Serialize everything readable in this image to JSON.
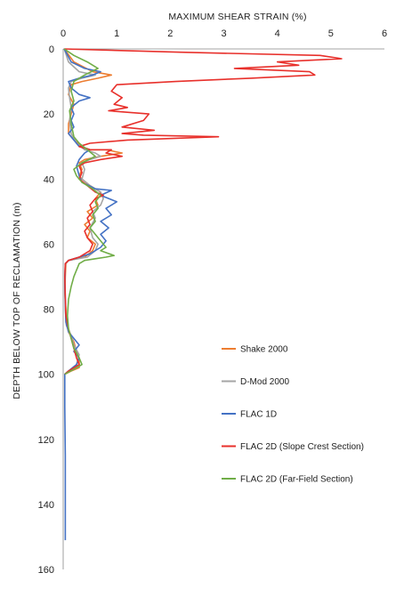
{
  "chart_data": {
    "type": "line",
    "xlabel": "MAXIMUM SHEAR STRAIN (%)",
    "ylabel": "DEPTH BELOW TOP OF RECLAMATION (m)",
    "xlim": [
      0,
      6
    ],
    "ylim": [
      0,
      160
    ],
    "y_inverted": true,
    "x_axis_position": "top",
    "x_ticks": [
      0,
      1,
      2,
      3,
      4,
      5,
      6
    ],
    "y_ticks": [
      0,
      20,
      40,
      60,
      80,
      100,
      120,
      140,
      160
    ],
    "grid": "none",
    "legend_position": "bottom-right inside",
    "series": [
      {
        "name": "Shake 2000",
        "color": "#ed7d31",
        "points": [
          [
            0.02,
            0
          ],
          [
            0.2,
            4
          ],
          [
            0.55,
            7
          ],
          [
            0.9,
            8
          ],
          [
            0.65,
            9
          ],
          [
            0.35,
            10
          ],
          [
            0.15,
            11
          ],
          [
            0.1,
            14
          ],
          [
            0.2,
            17
          ],
          [
            0.15,
            20
          ],
          [
            0.1,
            23
          ],
          [
            0.1,
            26
          ],
          [
            0.2,
            28
          ],
          [
            0.35,
            30
          ],
          [
            0.5,
            31
          ],
          [
            0.8,
            31
          ],
          [
            1.1,
            32
          ],
          [
            0.7,
            33
          ],
          [
            0.4,
            34
          ],
          [
            0.3,
            35
          ],
          [
            0.35,
            37
          ],
          [
            0.3,
            39
          ],
          [
            0.35,
            40
          ],
          [
            0.5,
            42
          ],
          [
            0.7,
            44
          ],
          [
            0.6,
            46
          ],
          [
            0.65,
            48
          ],
          [
            0.45,
            50
          ],
          [
            0.55,
            52
          ],
          [
            0.4,
            54
          ],
          [
            0.5,
            56
          ],
          [
            0.45,
            58
          ],
          [
            0.6,
            60
          ],
          [
            0.55,
            62
          ],
          [
            0.4,
            64
          ],
          [
            0.1,
            65
          ],
          [
            0.05,
            66
          ],
          [
            0.04,
            70
          ],
          [
            0.03,
            75
          ],
          [
            0.05,
            80
          ],
          [
            0.06,
            84
          ],
          [
            0.1,
            87
          ],
          [
            0.2,
            90
          ],
          [
            0.25,
            93
          ],
          [
            0.3,
            96
          ],
          [
            0.3,
            98
          ],
          [
            0.15,
            99
          ],
          [
            0.03,
            100
          ]
        ]
      },
      {
        "name": "D-Mod 2000",
        "color": "#a5a5a5",
        "points": [
          [
            0.02,
            0
          ],
          [
            0.1,
            4
          ],
          [
            0.3,
            7
          ],
          [
            0.6,
            8
          ],
          [
            0.35,
            9
          ],
          [
            0.15,
            10
          ],
          [
            0.1,
            12
          ],
          [
            0.12,
            15
          ],
          [
            0.15,
            18
          ],
          [
            0.12,
            22
          ],
          [
            0.15,
            26
          ],
          [
            0.25,
            29
          ],
          [
            0.4,
            31
          ],
          [
            0.6,
            32
          ],
          [
            0.7,
            33
          ],
          [
            0.5,
            34
          ],
          [
            0.35,
            35
          ],
          [
            0.4,
            37
          ],
          [
            0.35,
            40
          ],
          [
            0.5,
            42
          ],
          [
            0.7,
            44
          ],
          [
            0.75,
            46
          ],
          [
            0.7,
            48
          ],
          [
            0.55,
            50
          ],
          [
            0.6,
            52
          ],
          [
            0.5,
            55
          ],
          [
            0.55,
            58
          ],
          [
            0.65,
            60
          ],
          [
            0.6,
            62
          ],
          [
            0.45,
            64
          ],
          [
            0.1,
            65
          ],
          [
            0.04,
            66
          ],
          [
            0.03,
            72
          ],
          [
            0.04,
            80
          ],
          [
            0.06,
            85
          ],
          [
            0.15,
            88
          ],
          [
            0.2,
            91
          ],
          [
            0.3,
            94
          ],
          [
            0.25,
            97
          ],
          [
            0.1,
            99
          ],
          [
            0.03,
            100
          ]
        ]
      },
      {
        "name": "FLAC 1D",
        "color": "#4472c4",
        "points": [
          [
            0.02,
            0
          ],
          [
            0.15,
            4
          ],
          [
            0.4,
            6
          ],
          [
            0.7,
            7
          ],
          [
            0.55,
            8
          ],
          [
            0.3,
            9
          ],
          [
            0.1,
            10
          ],
          [
            0.15,
            12
          ],
          [
            0.3,
            14
          ],
          [
            0.5,
            15
          ],
          [
            0.3,
            16
          ],
          [
            0.15,
            18
          ],
          [
            0.2,
            20
          ],
          [
            0.15,
            22
          ],
          [
            0.2,
            24
          ],
          [
            0.1,
            26
          ],
          [
            0.2,
            28
          ],
          [
            0.3,
            30
          ],
          [
            0.5,
            31
          ],
          [
            0.4,
            32
          ],
          [
            0.3,
            34
          ],
          [
            0.25,
            36
          ],
          [
            0.3,
            39
          ],
          [
            0.35,
            41
          ],
          [
            0.6,
            43
          ],
          [
            0.9,
            43.5
          ],
          [
            0.7,
            45
          ],
          [
            1.0,
            47
          ],
          [
            0.8,
            49
          ],
          [
            0.9,
            51
          ],
          [
            0.7,
            53
          ],
          [
            0.85,
            55
          ],
          [
            0.7,
            57
          ],
          [
            0.8,
            59
          ],
          [
            0.7,
            61
          ],
          [
            0.5,
            63
          ],
          [
            0.1,
            65
          ],
          [
            0.04,
            66
          ],
          [
            0.03,
            72
          ],
          [
            0.04,
            78
          ],
          [
            0.05,
            84
          ],
          [
            0.1,
            87
          ],
          [
            0.2,
            89
          ],
          [
            0.3,
            91
          ],
          [
            0.2,
            93
          ],
          [
            0.3,
            95
          ],
          [
            0.25,
            97
          ],
          [
            0.1,
            99
          ],
          [
            0.03,
            100
          ],
          [
            0.03,
            110
          ],
          [
            0.04,
            125
          ],
          [
            0.04,
            140
          ],
          [
            0.04,
            151
          ]
        ]
      },
      {
        "name": "FLAC 2D (Slope Crest Section)",
        "color": "#e8302b",
        "points": [
          [
            0.02,
            0
          ],
          [
            2.2,
            1
          ],
          [
            4.8,
            2
          ],
          [
            5.2,
            3
          ],
          [
            4.0,
            4
          ],
          [
            4.4,
            5
          ],
          [
            3.2,
            6
          ],
          [
            4.6,
            7
          ],
          [
            4.7,
            8
          ],
          [
            3.5,
            9
          ],
          [
            2.1,
            10
          ],
          [
            1.0,
            11
          ],
          [
            0.9,
            13
          ],
          [
            1.1,
            15
          ],
          [
            0.95,
            17
          ],
          [
            1.2,
            18
          ],
          [
            0.85,
            19
          ],
          [
            1.6,
            20
          ],
          [
            1.5,
            22
          ],
          [
            1.1,
            24
          ],
          [
            1.7,
            25
          ],
          [
            1.1,
            26
          ],
          [
            1.5,
            26.5
          ],
          [
            2.9,
            27
          ],
          [
            1.2,
            28
          ],
          [
            0.5,
            29
          ],
          [
            0.3,
            30
          ],
          [
            0.5,
            31
          ],
          [
            0.9,
            31
          ],
          [
            0.8,
            32
          ],
          [
            1.1,
            33
          ],
          [
            0.7,
            34
          ],
          [
            0.4,
            35
          ],
          [
            0.3,
            36
          ],
          [
            0.35,
            38
          ],
          [
            0.3,
            40
          ],
          [
            0.45,
            42
          ],
          [
            0.6,
            44
          ],
          [
            0.75,
            45
          ],
          [
            0.6,
            46
          ],
          [
            0.5,
            48
          ],
          [
            0.55,
            50
          ],
          [
            0.45,
            52
          ],
          [
            0.5,
            54
          ],
          [
            0.4,
            56
          ],
          [
            0.45,
            58
          ],
          [
            0.55,
            60
          ],
          [
            0.5,
            62
          ],
          [
            0.3,
            64
          ],
          [
            0.1,
            65
          ],
          [
            0.04,
            66
          ],
          [
            0.03,
            70
          ],
          [
            0.04,
            76
          ],
          [
            0.05,
            82
          ],
          [
            0.1,
            86
          ],
          [
            0.15,
            89
          ],
          [
            0.2,
            92
          ],
          [
            0.25,
            95
          ],
          [
            0.3,
            97
          ],
          [
            0.1,
            99
          ],
          [
            0.03,
            100
          ]
        ]
      },
      {
        "name": "FLAC 2D (Far-Field Section)",
        "color": "#70ad47",
        "points": [
          [
            0.02,
            0
          ],
          [
            0.2,
            2
          ],
          [
            0.45,
            4
          ],
          [
            0.65,
            6
          ],
          [
            0.4,
            8
          ],
          [
            0.2,
            10
          ],
          [
            0.15,
            13
          ],
          [
            0.2,
            16
          ],
          [
            0.12,
            19
          ],
          [
            0.15,
            23
          ],
          [
            0.2,
            27
          ],
          [
            0.3,
            29
          ],
          [
            0.45,
            31
          ],
          [
            0.6,
            33
          ],
          [
            0.35,
            35
          ],
          [
            0.2,
            37
          ],
          [
            0.25,
            39
          ],
          [
            0.35,
            41
          ],
          [
            0.55,
            43
          ],
          [
            0.7,
            45
          ],
          [
            0.6,
            47
          ],
          [
            0.65,
            49
          ],
          [
            0.55,
            51
          ],
          [
            0.6,
            53
          ],
          [
            0.5,
            55
          ],
          [
            0.6,
            57
          ],
          [
            0.7,
            59
          ],
          [
            0.8,
            61
          ],
          [
            0.7,
            62
          ],
          [
            0.95,
            63.5
          ],
          [
            0.8,
            64
          ],
          [
            0.6,
            64.5
          ],
          [
            0.4,
            65
          ],
          [
            0.3,
            66
          ],
          [
            0.25,
            68
          ],
          [
            0.2,
            70
          ],
          [
            0.15,
            73
          ],
          [
            0.1,
            77
          ],
          [
            0.08,
            82
          ],
          [
            0.1,
            86
          ],
          [
            0.15,
            89
          ],
          [
            0.2,
            92
          ],
          [
            0.3,
            95
          ],
          [
            0.35,
            97
          ],
          [
            0.2,
            98.5
          ],
          [
            0.03,
            100
          ]
        ]
      }
    ]
  }
}
